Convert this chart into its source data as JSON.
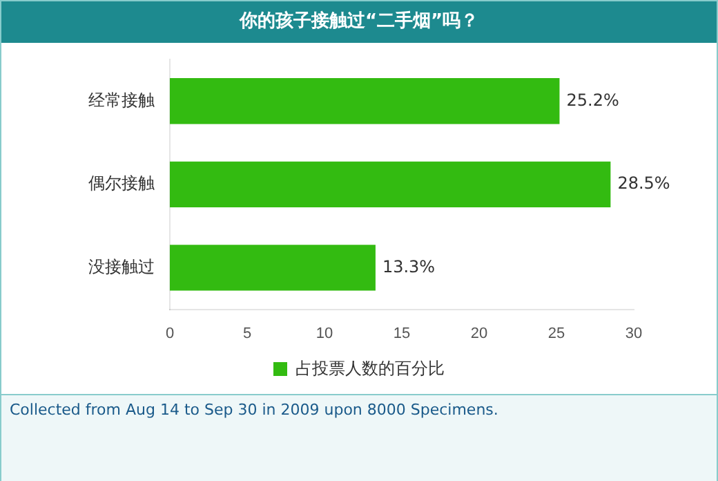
{
  "chart_data": {
    "type": "bar",
    "orientation": "horizontal",
    "title": "你的孩子接触过“二手烟”吗？",
    "categories": [
      "经常接触",
      "偶尔接触",
      "没接触过"
    ],
    "series": [
      {
        "name": "占投票人数的百分比",
        "color": "#33bb11",
        "values": [
          25.2,
          28.5,
          13.3
        ],
        "value_labels": [
          "25.2%",
          "28.5%",
          "13.3%"
        ]
      }
    ],
    "xlim": [
      0,
      30
    ],
    "xticks": [
      0,
      5,
      10,
      15,
      20,
      25,
      30
    ],
    "grid": false,
    "legend": "bottom",
    "annotations": [
      "Collected from Aug 14 to Sep 30 in 2009 upon 8000 Specimens."
    ]
  }
}
